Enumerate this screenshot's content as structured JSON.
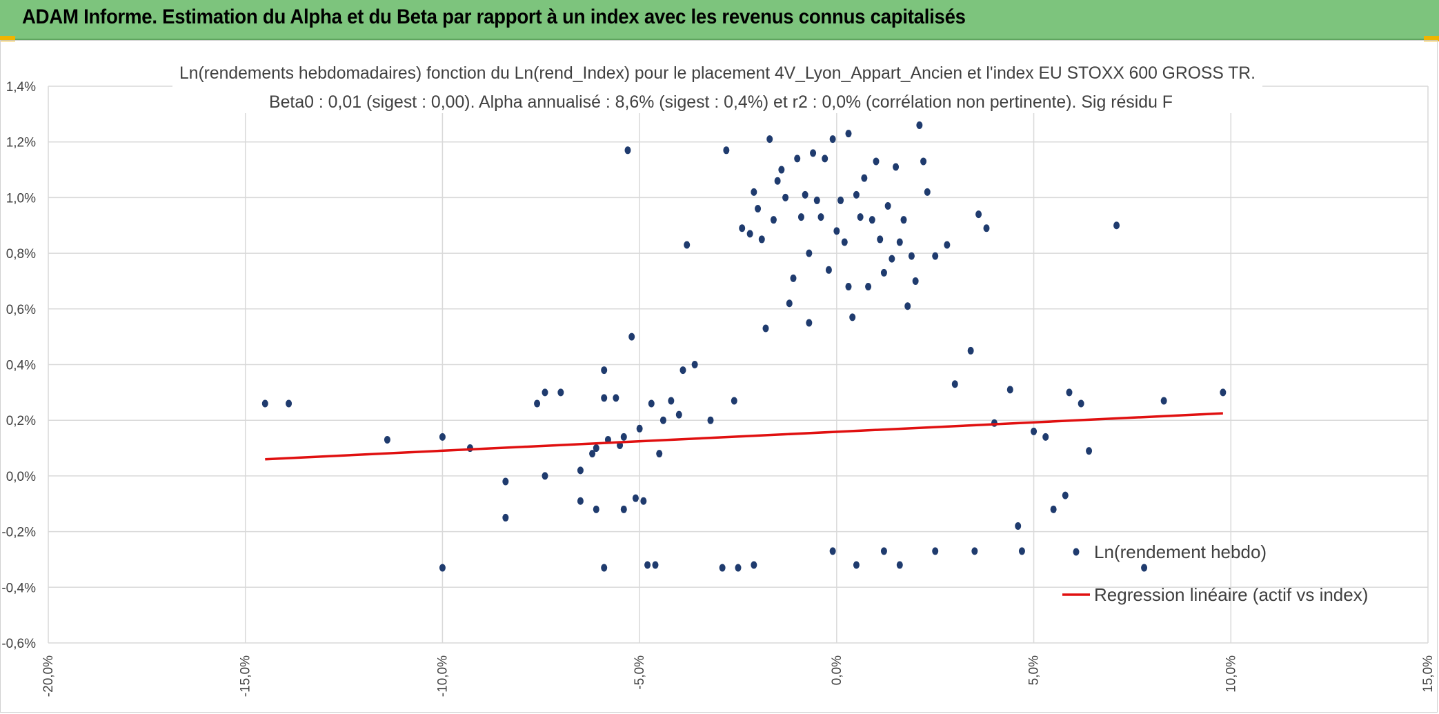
{
  "header": {
    "title": "ADAM Informe. Estimation du Alpha et du Beta par rapport à un index avec les revenus connus capitalisés",
    "background_color": "#7dc47d",
    "corner_accent_color": "#f0b400"
  },
  "chart_data": {
    "type": "scatter",
    "title_line1": "Ln(rendements hebdomadaires) fonction du Ln(rend_Index) pour le placement 4V_Lyon_Appart_Ancien et l'index EU STOXX 600 GROSS TR.",
    "title_line2": "Beta0 : 0,01 (sigest : 0,00). Alpha annualisé : 8,6% (sigest : 0,4%) et r2 : 0,0% (corrélation non pertinente). Sig résidu F",
    "xlim": [
      -20,
      15
    ],
    "ylim": [
      -0.6,
      1.4
    ],
    "x_ticks": [
      -20,
      -15,
      -10,
      -5,
      0,
      5,
      10,
      15
    ],
    "y_ticks": [
      -0.6,
      -0.4,
      -0.2,
      0.0,
      0.2,
      0.4,
      0.6,
      0.8,
      1.0,
      1.2,
      1.4
    ],
    "x_tick_labels": [
      "-20,0%",
      "-15,0%",
      "-10,0%",
      "-5,0%",
      "0,0%",
      "5,0%",
      "10,0%",
      "15,0%"
    ],
    "y_tick_labels": [
      "-0,6%",
      "-0,4%",
      "-0,2%",
      "0,0%",
      "0,2%",
      "0,4%",
      "0,6%",
      "0,8%",
      "1,0%",
      "1,2%",
      "1,4%"
    ],
    "grid": true,
    "legend_position": "bottom-right",
    "series": [
      {
        "name": "Ln(rendement hebdo)",
        "kind": "scatter",
        "color": "#1f3b6e",
        "points": [
          [
            -14.5,
            0.26
          ],
          [
            -13.9,
            0.26
          ],
          [
            -11.4,
            0.13
          ],
          [
            -10,
            0.14
          ],
          [
            -10,
            -0.33
          ],
          [
            -9.3,
            0.1
          ],
          [
            -8.4,
            -0.02
          ],
          [
            -8.4,
            -0.15
          ],
          [
            -7.6,
            0.26
          ],
          [
            -7.4,
            0.3
          ],
          [
            -7.4,
            0.0
          ],
          [
            -7.0,
            0.3
          ],
          [
            -6.5,
            0.02
          ],
          [
            -6.5,
            -0.09
          ],
          [
            -6.2,
            0.08
          ],
          [
            -6.1,
            0.1
          ],
          [
            -6.1,
            -0.12
          ],
          [
            -5.9,
            0.38
          ],
          [
            -5.9,
            0.28
          ],
          [
            -5.9,
            -0.33
          ],
          [
            -5.8,
            0.13
          ],
          [
            -5.6,
            0.28
          ],
          [
            -5.5,
            0.11
          ],
          [
            -5.4,
            -0.12
          ],
          [
            -5.4,
            0.14
          ],
          [
            -5.3,
            1.17
          ],
          [
            -5.2,
            0.5
          ],
          [
            -5.1,
            -0.08
          ],
          [
            -5.0,
            0.17
          ],
          [
            -4.9,
            -0.09
          ],
          [
            -4.8,
            -0.32
          ],
          [
            -4.7,
            0.26
          ],
          [
            -4.6,
            -0.32
          ],
          [
            -4.5,
            0.08
          ],
          [
            -4.4,
            0.2
          ],
          [
            -4.2,
            0.27
          ],
          [
            -4.0,
            0.22
          ],
          [
            -3.9,
            0.38
          ],
          [
            -3.8,
            0.83
          ],
          [
            -3.6,
            0.4
          ],
          [
            -3.2,
            0.2
          ],
          [
            -2.9,
            -0.33
          ],
          [
            -2.8,
            1.17
          ],
          [
            -2.6,
            0.27
          ],
          [
            -2.5,
            -0.33
          ],
          [
            -2.4,
            0.89
          ],
          [
            -2.2,
            0.87
          ],
          [
            -2.1,
            1.02
          ],
          [
            -2.1,
            -0.32
          ],
          [
            -2.0,
            0.96
          ],
          [
            -1.9,
            0.85
          ],
          [
            -1.8,
            0.53
          ],
          [
            -1.7,
            1.21
          ],
          [
            -1.6,
            0.92
          ],
          [
            -1.5,
            1.06
          ],
          [
            -1.4,
            1.1
          ],
          [
            -1.3,
            1.0
          ],
          [
            -1.2,
            0.62
          ],
          [
            -1.1,
            0.71
          ],
          [
            -1.0,
            1.14
          ],
          [
            -0.9,
            0.93
          ],
          [
            -0.8,
            1.01
          ],
          [
            -0.7,
            0.8
          ],
          [
            -0.7,
            0.55
          ],
          [
            -0.6,
            1.16
          ],
          [
            -0.5,
            0.99
          ],
          [
            -0.4,
            0.93
          ],
          [
            -0.3,
            1.14
          ],
          [
            -0.2,
            0.74
          ],
          [
            -0.1,
            1.21
          ],
          [
            0.0,
            0.88
          ],
          [
            0.1,
            0.99
          ],
          [
            0.2,
            0.84
          ],
          [
            0.3,
            1.23
          ],
          [
            0.3,
            0.68
          ],
          [
            0.4,
            0.57
          ],
          [
            0.5,
            1.01
          ],
          [
            0.6,
            0.93
          ],
          [
            0.7,
            1.07
          ],
          [
            0.8,
            0.68
          ],
          [
            0.9,
            0.92
          ],
          [
            1.0,
            1.13
          ],
          [
            1.1,
            0.85
          ],
          [
            1.2,
            0.73
          ],
          [
            1.3,
            0.97
          ],
          [
            1.4,
            0.78
          ],
          [
            1.5,
            1.11
          ],
          [
            1.6,
            0.84
          ],
          [
            1.7,
            0.92
          ],
          [
            1.8,
            0.61
          ],
          [
            1.9,
            0.79
          ],
          [
            2.0,
            0.7
          ],
          [
            2.1,
            1.26
          ],
          [
            2.2,
            1.13
          ],
          [
            2.3,
            1.02
          ],
          [
            2.5,
            0.79
          ],
          [
            2.8,
            0.83
          ],
          [
            3.0,
            0.33
          ],
          [
            3.4,
            0.45
          ],
          [
            3.6,
            0.94
          ],
          [
            3.8,
            0.89
          ],
          [
            3.5,
            -0.27
          ],
          [
            4.0,
            0.19
          ],
          [
            4.4,
            0.31
          ],
          [
            4.6,
            -0.18
          ],
          [
            4.7,
            -0.27
          ],
          [
            5.0,
            0.16
          ],
          [
            5.3,
            0.14
          ],
          [
            5.5,
            -0.12
          ],
          [
            5.8,
            -0.07
          ],
          [
            5.9,
            0.3
          ],
          [
            6.2,
            0.26
          ],
          [
            6.4,
            0.09
          ],
          [
            7.1,
            0.9
          ],
          [
            7.8,
            -0.33
          ],
          [
            8.3,
            0.27
          ],
          [
            9.8,
            0.3
          ],
          [
            1.6,
            -0.32
          ],
          [
            0.5,
            -0.32
          ],
          [
            2.5,
            -0.27
          ],
          [
            1.2,
            -0.27
          ],
          [
            -0.1,
            -0.27
          ]
        ]
      },
      {
        "name": "Regression linéaire (actif vs index)",
        "kind": "line",
        "color": "#e01010",
        "x": [
          -14.5,
          9.8
        ],
        "y": [
          0.06,
          0.225
        ]
      }
    ]
  }
}
